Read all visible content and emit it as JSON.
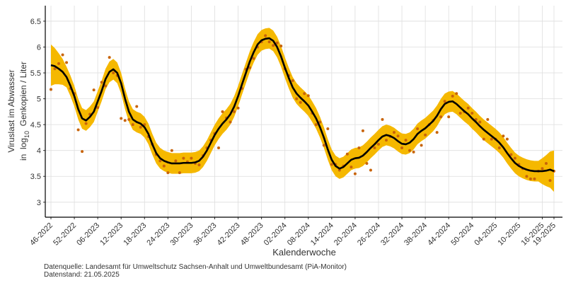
{
  "chart_data": {
    "type": "line",
    "ylabel": {
      "line1": "Viruslast im Abwasser",
      "line2_pre": "in  log",
      "line2_sub": "10",
      "line2_post": "  Genkopien / Liter"
    },
    "xlabel": "Kalenderwoche",
    "caption": [
      "Datenquelle: Landesamt für Umweltschutz Sachsen-Anhalt und Umweltbundesamt (PiA-Monitor)",
      "Datenstand: 21.05.2025"
    ],
    "categories": [
      "46-2022",
      null,
      null,
      null,
      null,
      null,
      "52-2022",
      null,
      null,
      null,
      null,
      null,
      "06-2023",
      null,
      null,
      null,
      null,
      null,
      "12-2023",
      null,
      null,
      null,
      null,
      null,
      "18-2023",
      null,
      null,
      null,
      null,
      null,
      "24-2023",
      null,
      null,
      null,
      null,
      null,
      "30-2023",
      null,
      null,
      null,
      null,
      null,
      "36-2023",
      null,
      null,
      null,
      null,
      null,
      "42-2023",
      null,
      null,
      null,
      null,
      null,
      "48-2023",
      null,
      null,
      null,
      null,
      null,
      "02-2024",
      null,
      null,
      null,
      null,
      null,
      "08-2024",
      null,
      null,
      null,
      null,
      null,
      "14-2024",
      null,
      null,
      null,
      null,
      null,
      "20-2024",
      null,
      null,
      null,
      null,
      null,
      "26-2024",
      null,
      null,
      null,
      null,
      null,
      "32-2024",
      null,
      null,
      null,
      null,
      null,
      "38-2024",
      null,
      null,
      null,
      null,
      null,
      "44-2024",
      null,
      null,
      null,
      null,
      null,
      "50-2024",
      null,
      null,
      null,
      null,
      null,
      "04-2025",
      null,
      null,
      null,
      null,
      null,
      "10-2025",
      null,
      null,
      null,
      null,
      null,
      "16-2025",
      null,
      null,
      "19-2025"
    ],
    "band": {
      "color": "#f5b800",
      "upper": [
        6.05,
        5.98,
        5.88,
        5.77,
        5.62,
        5.45,
        5.25,
        5.0,
        4.82,
        4.78,
        4.85,
        4.95,
        5.15,
        5.35,
        5.58,
        5.72,
        5.77,
        5.7,
        5.5,
        5.2,
        4.95,
        4.8,
        4.75,
        4.72,
        4.65,
        4.52,
        4.32,
        4.15,
        4.05,
        4.0,
        3.97,
        3.95,
        3.95,
        3.95,
        3.96,
        3.96,
        3.96,
        3.97,
        4.0,
        4.08,
        4.2,
        4.35,
        4.5,
        4.62,
        4.72,
        4.8,
        4.9,
        5.05,
        5.25,
        5.48,
        5.7,
        5.92,
        6.1,
        6.25,
        6.33,
        6.36,
        6.37,
        6.32,
        6.2,
        6.02,
        5.8,
        5.6,
        5.42,
        5.3,
        5.22,
        5.15,
        5.07,
        4.95,
        4.82,
        4.65,
        4.45,
        4.22,
        4.02,
        3.9,
        3.85,
        3.88,
        3.95,
        4.02,
        4.05,
        4.06,
        4.1,
        4.17,
        4.25,
        4.32,
        4.4,
        4.47,
        4.5,
        4.48,
        4.44,
        4.38,
        4.33,
        4.32,
        4.35,
        4.42,
        4.52,
        4.58,
        4.63,
        4.7,
        4.77,
        4.87,
        5.0,
        5.1,
        5.14,
        5.15,
        5.1,
        5.03,
        4.96,
        4.9,
        4.82,
        4.75,
        4.67,
        4.6,
        4.54,
        4.48,
        4.42,
        4.35,
        4.26,
        4.15,
        4.05,
        3.96,
        3.9,
        3.86,
        3.83,
        3.81,
        3.8,
        3.8,
        3.85,
        3.91,
        3.98,
        4.0
      ],
      "lower": [
        5.25,
        5.28,
        5.28,
        5.27,
        5.22,
        5.05,
        4.85,
        4.6,
        4.42,
        4.38,
        4.45,
        4.55,
        4.75,
        4.95,
        5.18,
        5.32,
        5.37,
        5.3,
        5.1,
        4.8,
        4.55,
        4.4,
        4.35,
        4.32,
        4.25,
        4.12,
        3.92,
        3.75,
        3.65,
        3.6,
        3.57,
        3.55,
        3.55,
        3.55,
        3.56,
        3.56,
        3.56,
        3.57,
        3.6,
        3.68,
        3.8,
        3.95,
        4.1,
        4.22,
        4.32,
        4.4,
        4.5,
        4.65,
        4.85,
        5.08,
        5.3,
        5.52,
        5.7,
        5.85,
        5.93,
        5.96,
        5.97,
        5.92,
        5.8,
        5.62,
        5.4,
        5.2,
        5.02,
        4.9,
        4.82,
        4.75,
        4.67,
        4.55,
        4.42,
        4.25,
        4.05,
        3.82,
        3.62,
        3.5,
        3.45,
        3.48,
        3.55,
        3.62,
        3.65,
        3.66,
        3.7,
        3.77,
        3.85,
        3.92,
        4.0,
        4.07,
        4.1,
        4.08,
        4.04,
        3.98,
        3.93,
        3.92,
        3.95,
        4.02,
        4.12,
        4.18,
        4.23,
        4.3,
        4.37,
        4.47,
        4.6,
        4.7,
        4.74,
        4.75,
        4.7,
        4.63,
        4.56,
        4.5,
        4.42,
        4.35,
        4.27,
        4.2,
        4.14,
        4.08,
        4.02,
        3.95,
        3.86,
        3.75,
        3.65,
        3.56,
        3.5,
        3.46,
        3.43,
        3.41,
        3.4,
        3.4,
        3.35,
        3.31,
        3.28,
        3.2
      ]
    },
    "fit": {
      "color": "#000000",
      "values": [
        5.65,
        5.63,
        5.58,
        5.52,
        5.42,
        5.25,
        5.05,
        4.8,
        4.62,
        4.58,
        4.65,
        4.75,
        4.95,
        5.15,
        5.38,
        5.52,
        5.57,
        5.5,
        5.3,
        5.0,
        4.75,
        4.6,
        4.55,
        4.52,
        4.45,
        4.32,
        4.12,
        3.95,
        3.85,
        3.8,
        3.77,
        3.75,
        3.75,
        3.75,
        3.76,
        3.76,
        3.76,
        3.77,
        3.8,
        3.88,
        4.0,
        4.15,
        4.3,
        4.42,
        4.52,
        4.6,
        4.7,
        4.85,
        5.05,
        5.28,
        5.5,
        5.72,
        5.9,
        6.05,
        6.13,
        6.16,
        6.17,
        6.12,
        6.0,
        5.82,
        5.6,
        5.4,
        5.22,
        5.1,
        5.02,
        4.95,
        4.87,
        4.75,
        4.62,
        4.45,
        4.25,
        4.02,
        3.82,
        3.7,
        3.65,
        3.68,
        3.75,
        3.82,
        3.85,
        3.86,
        3.9,
        3.97,
        4.05,
        4.12,
        4.2,
        4.27,
        4.3,
        4.28,
        4.24,
        4.18,
        4.13,
        4.12,
        4.15,
        4.22,
        4.32,
        4.38,
        4.43,
        4.5,
        4.57,
        4.67,
        4.8,
        4.9,
        4.94,
        4.95,
        4.9,
        4.83,
        4.76,
        4.7,
        4.62,
        4.55,
        4.47,
        4.4,
        4.34,
        4.28,
        4.22,
        4.15,
        4.06,
        3.95,
        3.85,
        3.76,
        3.7,
        3.66,
        3.63,
        3.61,
        3.6,
        3.6,
        3.6,
        3.61,
        3.63,
        3.6
      ]
    },
    "points": {
      "color": "#c8640a",
      "values": [
        5.18,
        5.58,
        5.68,
        5.85,
        5.7,
        5.2,
        5.1,
        4.4,
        3.98,
        4.52,
        4.7,
        5.17,
        4.83,
        5.32,
        5.25,
        5.8,
        5.5,
        5.45,
        4.62,
        4.58,
        4.6,
        4.5,
        4.85,
        4.45,
        4.5,
        4.27,
        4.12,
        3.92,
        3.8,
        3.7,
        3.57,
        4.0,
        3.8,
        3.57,
        3.85,
        3.78,
        3.85,
        3.75,
        3.72,
        3.9,
        4.05,
        4.2,
        4.33,
        4.05,
        4.75,
        4.63,
        4.55,
        4.75,
        4.82,
        5.2,
        5.57,
        5.6,
        5.78,
        6.0,
        6.1,
        6.22,
        6.1,
        6.03,
        6.08,
        6.02,
        5.58,
        5.45,
        5.35,
        5.0,
        4.93,
        5.1,
        5.06,
        4.72,
        4.5,
        4.55,
        4.1,
        4.42,
        3.73,
        3.73,
        3.62,
        3.7,
        3.93,
        3.68,
        3.55,
        4.05,
        4.38,
        3.75,
        3.62,
        4.05,
        4.12,
        4.6,
        4.2,
        4.27,
        4.35,
        4.28,
        4.05,
        4.2,
        4.0,
        3.97,
        4.42,
        4.1,
        4.3,
        4.5,
        4.58,
        4.35,
        4.65,
        4.95,
        4.65,
        5.05,
        5.1,
        4.72,
        4.75,
        4.82,
        4.72,
        4.6,
        4.55,
        4.22,
        4.6,
        4.22,
        4.22,
        4.05,
        4.28,
        4.22,
        3.92,
        3.85,
        3.73,
        3.65,
        3.5,
        3.45,
        3.45,
        3.6,
        3.65,
        3.75,
        3.42,
        3.6
      ]
    },
    "ylim": [
      2.71,
      6.8
    ],
    "yticks": [
      3,
      3.5,
      4,
      4.5,
      5,
      5.5,
      6,
      6.5
    ],
    "grid": true
  }
}
